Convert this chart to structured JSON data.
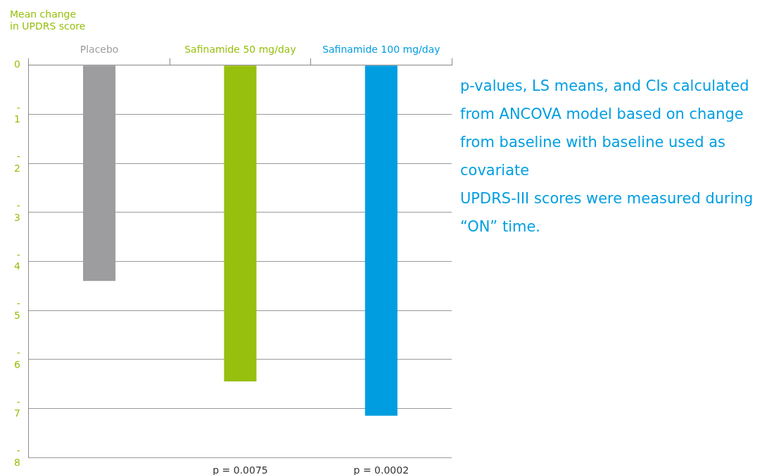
{
  "chart_data": {
    "type": "bar",
    "ylabel": "Mean change in UPDRS score",
    "categories": [
      "Placebo",
      "Safinamide 50 mg/day",
      "Safinamide 100 mg/day"
    ],
    "values": [
      -4.4,
      -6.45,
      -7.15
    ],
    "colors": [
      "#9d9d9f",
      "#97bf0d",
      "#009ee0"
    ],
    "ylim": [
      -8,
      0
    ],
    "yticks": [
      -8,
      -7,
      -6,
      -5,
      -4,
      -3,
      -2,
      -1,
      0
    ],
    "grid": "y",
    "annotations": [
      "p = 0.0075",
      "p = 0.0002",
      "p-values, LS means, and CIs calculated from ANCOVA model based on change from baseline with baseline used as covariate",
      "UPDRS-III scores were measured during “ON” time."
    ]
  }
}
